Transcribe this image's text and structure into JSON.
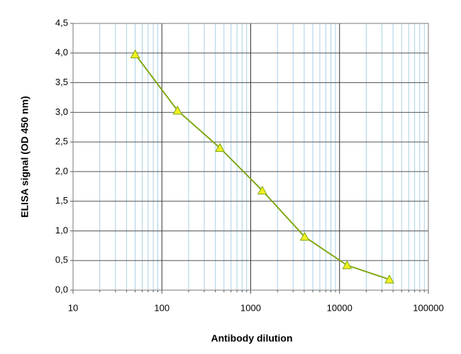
{
  "chart_data": {
    "type": "line",
    "x_label": "Antibody dilution",
    "y_label": "ELISA signal (OD 450 nm)",
    "x": [
      50,
      150,
      450,
      1350,
      4050,
      12150,
      36450
    ],
    "values": [
      3.98,
      3.03,
      2.4,
      1.68,
      0.9,
      0.42,
      0.18
    ],
    "color": "#7fa814",
    "marker_color": "#f0f020",
    "xscale": "log",
    "xlim": [
      10,
      100000
    ],
    "xticks": [
      10,
      100,
      1000,
      10000,
      100000
    ],
    "ylim": [
      0,
      4.5
    ],
    "yticks": [
      {
        "value": 0,
        "label": "0,0"
      },
      {
        "value": 0.5,
        "label": "0,5"
      },
      {
        "value": 1,
        "label": "1,0"
      },
      {
        "value": 1.5,
        "label": "1,5"
      },
      {
        "value": 2,
        "label": "2,0"
      },
      {
        "value": 2.5,
        "label": "2,5"
      },
      {
        "value": 3,
        "label": "3,0"
      },
      {
        "value": 3.5,
        "label": "3,5"
      },
      {
        "value": 4,
        "label": "4,0"
      },
      {
        "value": 4.5,
        "label": "4,5"
      }
    ],
    "grid": true,
    "minor_grid": true
  }
}
